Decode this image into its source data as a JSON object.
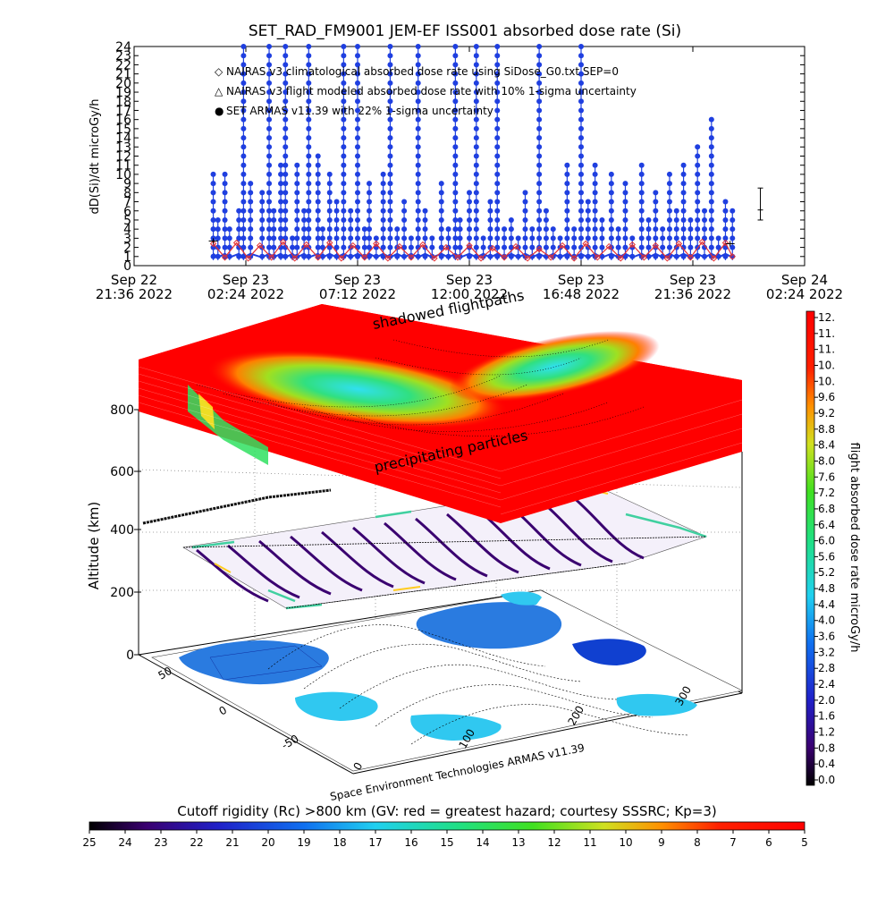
{
  "chart_data": [
    {
      "type": "line",
      "title": "SET_RAD_FM9001  JEM-EF ISS001 absorbed dose rate (Si)",
      "ylabel": "dD(Si)/dt microGy/h",
      "ylim": [
        0,
        24
      ],
      "yticks": [
        "0",
        "1",
        "2",
        "3",
        "4",
        "5",
        "6",
        "7",
        "8",
        "9",
        "10",
        "11",
        "12",
        "13",
        "14",
        "15",
        "16",
        "17",
        "18",
        "19",
        "20",
        "21",
        "22",
        "23",
        "24"
      ],
      "xlim_hours": [
        0,
        28.8
      ],
      "xticks": [
        {
          "hour": 0,
          "line1": "Sep 22",
          "line2": "21:36 2022"
        },
        {
          "hour": 4.8,
          "line1": "Sep 23",
          "line2": "02:24 2022"
        },
        {
          "hour": 9.6,
          "line1": "Sep 23",
          "line2": "07:12 2022"
        },
        {
          "hour": 14.4,
          "line1": "Sep 23",
          "line2": "12:00 2022"
        },
        {
          "hour": 19.2,
          "line1": "Sep 23",
          "line2": "16:48 2022"
        },
        {
          "hour": 24.0,
          "line1": "Sep 23",
          "line2": "21:36 2022"
        },
        {
          "hour": 28.8,
          "line1": "Sep 24",
          "line2": "02:24 2022"
        }
      ],
      "legend": [
        {
          "marker": "◇",
          "color": "#e53030",
          "label": "NAIRAS v3 climatological absorbed dose rate using SiDose_G0.txt SEP=0"
        },
        {
          "marker": "△",
          "color": "#000000",
          "label": "NAIRAS v3 flight modeled absorbed dose rate with 10% 1-sigma uncertainty"
        },
        {
          "marker": "●",
          "color": "#1f3fe0",
          "label": "SET ARMAS v11.39 with 22% 1-sigma uncertainty"
        }
      ],
      "series": [
        {
          "name": "SET ARMAS v11.39 with 22% 1-sigma uncertainty",
          "color": "#1f3fe0",
          "x_hours": [
            3.4,
            3.6,
            3.9,
            4.1,
            4.5,
            4.7,
            5.0,
            5.5,
            5.8,
            6.0,
            6.3,
            6.5,
            6.8,
            7.0,
            7.3,
            7.5,
            7.9,
            8.1,
            8.4,
            8.7,
            9.0,
            9.3,
            9.6,
            9.9,
            10.1,
            10.4,
            10.7,
            11.0,
            11.3,
            11.6,
            11.9,
            12.2,
            12.5,
            12.8,
            13.2,
            13.5,
            13.8,
            14.0,
            14.4,
            14.7,
            15.0,
            15.3,
            15.6,
            15.9,
            16.2,
            16.5,
            16.8,
            17.1,
            17.4,
            17.7,
            18.0,
            18.3,
            18.6,
            18.9,
            19.2,
            19.5,
            19.8,
            20.1,
            20.5,
            20.8,
            21.1,
            21.4,
            21.8,
            22.1,
            22.4,
            22.7,
            23.0,
            23.3,
            23.6,
            23.9,
            24.2,
            24.5,
            24.8,
            25.1,
            25.4,
            25.7
          ],
          "values": [
            10,
            5,
            10,
            4,
            6,
            24,
            9,
            8,
            24,
            6,
            11,
            24,
            3,
            11,
            6,
            24,
            12,
            4,
            10,
            7,
            24,
            6,
            24,
            4,
            9,
            3,
            10,
            24,
            4,
            7,
            3,
            24,
            6,
            3,
            9,
            4,
            24,
            5,
            8,
            24,
            3,
            7,
            24,
            4,
            5,
            3,
            8,
            4,
            24,
            6,
            4,
            3,
            11,
            4,
            24,
            7,
            11,
            5,
            10,
            4,
            9,
            3,
            11,
            5,
            8,
            4,
            10,
            6,
            11,
            5,
            13,
            6,
            16,
            3,
            7,
            6
          ]
        },
        {
          "name": "NAIRAS v3 climatological absorbed dose rate using SiDose_G0.txt SEP=0",
          "color": "#e53030",
          "x_hours": [
            3.4,
            3.9,
            4.4,
            4.9,
            5.4,
            5.9,
            6.4,
            6.9,
            7.4,
            7.9,
            8.4,
            8.9,
            9.4,
            9.9,
            10.4,
            10.9,
            11.4,
            11.9,
            12.4,
            12.9,
            13.4,
            13.9,
            14.4,
            14.9,
            15.4,
            15.9,
            16.4,
            16.9,
            17.4,
            17.9,
            18.4,
            18.9,
            19.4,
            19.9,
            20.4,
            20.9,
            21.4,
            21.9,
            22.4,
            22.9,
            23.4,
            23.9,
            24.4,
            24.9,
            25.4,
            25.7
          ],
          "values": [
            2.4,
            0.9,
            2.5,
            0.8,
            2.2,
            0.9,
            2.6,
            0.8,
            2.3,
            0.9,
            2.5,
            0.8,
            2.2,
            0.9,
            2.4,
            0.8,
            2.1,
            0.9,
            2.3,
            0.8,
            2.0,
            0.9,
            2.2,
            0.8,
            1.9,
            0.9,
            2.1,
            0.8,
            1.8,
            0.9,
            2.2,
            0.8,
            2.4,
            0.9,
            2.1,
            0.8,
            2.3,
            0.9,
            2.2,
            0.8,
            2.4,
            0.9,
            2.6,
            0.8,
            2.5,
            1.0
          ]
        },
        {
          "name": "NAIRAS v3 flight modeled absorbed dose rate with 10% 1-sigma uncertainty",
          "color": "#000000",
          "x_hours": [
            3.4,
            25.6
          ],
          "values": [
            2.7,
            2.4
          ]
        }
      ]
    },
    {
      "type": "heatmap",
      "view": "3D perspective, orbit ground track over longitude/latitude",
      "zlabel": "Altitude (km)",
      "zticks": [
        "0",
        "200",
        "400",
        "600",
        "800"
      ],
      "lon_ticks": [
        "0",
        "100",
        "200",
        "300"
      ],
      "lat_ticks": [
        "-50",
        "0",
        "50"
      ],
      "layer_annotations": [
        "shadowed flightpaths",
        "precipitating particles"
      ],
      "credit": "Space Environment Technologies ARMAS v11.39",
      "colorbar_right": {
        "label": "flight absorbed dose rate microGy/h",
        "range": [
          0,
          12
        ],
        "ticks": [
          "12.",
          "11.",
          "11.",
          "10.",
          "10.",
          "9.6",
          "9.2",
          "8.8",
          "8.4",
          "8.0",
          "7.6",
          "7.2",
          "6.8",
          "6.4",
          "6.0",
          "5.6",
          "5.2",
          "4.8",
          "4.4",
          "4.0",
          "3.6",
          "3.2",
          "2.8",
          "2.4",
          "2.0",
          "1.6",
          "1.2",
          "0.8",
          "0.4",
          "0.0"
        ]
      },
      "colorbar_bottom": {
        "label": "Cutoff rigidity (Rc) >800 km (GV: red = greatest hazard; courtesy SSSRC; Kp=3)",
        "ticks": [
          "25",
          "24",
          "23",
          "22",
          "21",
          "20",
          "19",
          "18",
          "17",
          "16",
          "15",
          "14",
          "13",
          "12",
          "11",
          "10",
          "9",
          "8",
          "7",
          "6",
          "5"
        ]
      }
    }
  ]
}
